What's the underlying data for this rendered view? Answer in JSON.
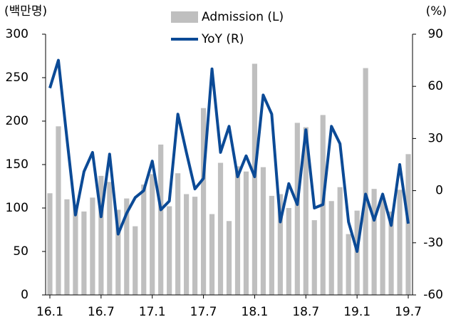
{
  "chart_data": {
    "type": "bar_line",
    "y_label": "(백만명)",
    "y2_label": "(%)",
    "categories": [
      "16.1",
      null,
      null,
      null,
      null,
      null,
      "16.7",
      null,
      null,
      null,
      null,
      null,
      "17.1",
      null,
      null,
      null,
      null,
      null,
      "17.7",
      null,
      null,
      null,
      null,
      null,
      "18.1",
      null,
      null,
      null,
      null,
      null,
      "18.7",
      null,
      null,
      null,
      null,
      null,
      "19.1",
      null,
      null,
      null,
      null,
      null,
      "19.7"
    ],
    "series": [
      {
        "name": "Admission (L)",
        "type": "bar",
        "color": "#bfbfbf",
        "axis": "y",
        "values": [
          117,
          194,
          110,
          104,
          96,
          112,
          137,
          130,
          98,
          111,
          79,
          127,
          139,
          173,
          102,
          140,
          116,
          113,
          215,
          93,
          152,
          85,
          148,
          142,
          266,
          147,
          114,
          116,
          100,
          198,
          193,
          86,
          207,
          108,
          124,
          70,
          97,
          261,
          122,
          110,
          96,
          121,
          162
        ]
      },
      {
        "name": "YoY (R)",
        "type": "line",
        "color": "#0b4a96",
        "axis": "y2",
        "values": [
          59,
          75,
          30,
          -14,
          11,
          22,
          -15,
          21,
          -25,
          -13,
          -4,
          0,
          17,
          -11,
          -6,
          44,
          22,
          1,
          7,
          70,
          22,
          37,
          8,
          20,
          8,
          55,
          44,
          -18,
          4,
          -8,
          35,
          -10,
          -8,
          37,
          27,
          -18,
          -35,
          -2,
          -17,
          -2,
          -20,
          15,
          -19
        ]
      }
    ],
    "ylim": [
      0,
      300
    ],
    "yticks": [
      0,
      50,
      100,
      150,
      200,
      250,
      300
    ],
    "y2lim": [
      -60,
      90
    ],
    "y2ticks": [
      -60,
      -30,
      0,
      30,
      60,
      90
    ]
  }
}
